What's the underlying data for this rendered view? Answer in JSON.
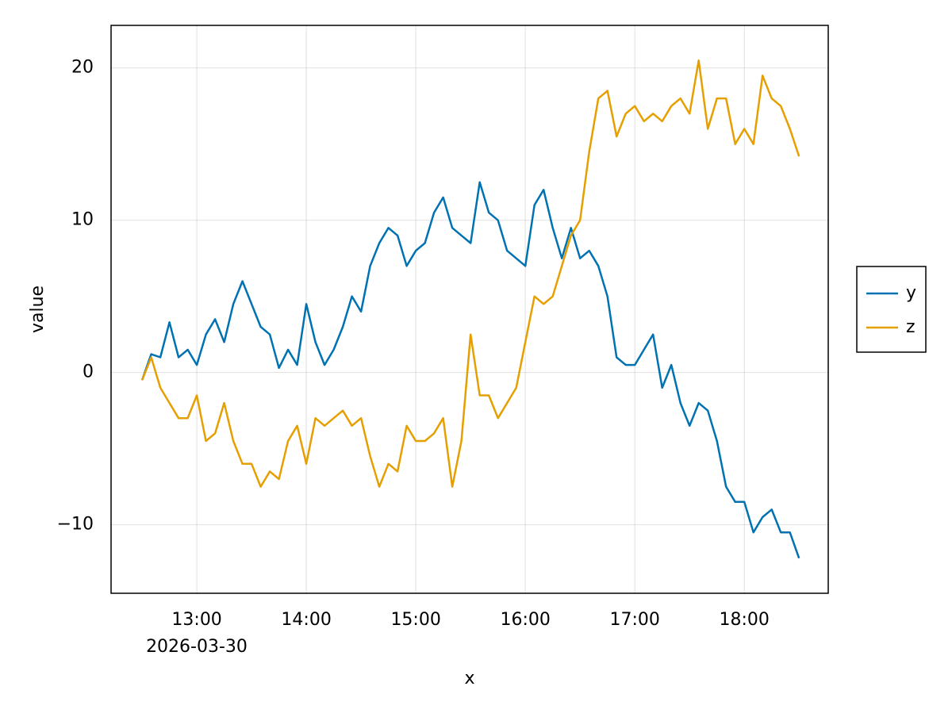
{
  "chart_data": {
    "type": "line",
    "x_label": "x",
    "y_label": "value",
    "date_label": "2026-03-30",
    "x": [
      "2026-03-30T12:30",
      "2026-03-30T12:35",
      "2026-03-30T12:40",
      "2026-03-30T12:45",
      "2026-03-30T12:50",
      "2026-03-30T12:55",
      "2026-03-30T13:00",
      "2026-03-30T13:05",
      "2026-03-30T13:10",
      "2026-03-30T13:15",
      "2026-03-30T13:20",
      "2026-03-30T13:25",
      "2026-03-30T13:30",
      "2026-03-30T13:35",
      "2026-03-30T13:40",
      "2026-03-30T13:45",
      "2026-03-30T13:50",
      "2026-03-30T13:55",
      "2026-03-30T14:00",
      "2026-03-30T14:05",
      "2026-03-30T14:10",
      "2026-03-30T14:15",
      "2026-03-30T14:20",
      "2026-03-30T14:25",
      "2026-03-30T14:30",
      "2026-03-30T14:35",
      "2026-03-30T14:40",
      "2026-03-30T14:45",
      "2026-03-30T14:50",
      "2026-03-30T14:55",
      "2026-03-30T15:00",
      "2026-03-30T15:05",
      "2026-03-30T15:10",
      "2026-03-30T15:15",
      "2026-03-30T15:20",
      "2026-03-30T15:25",
      "2026-03-30T15:30",
      "2026-03-30T15:35",
      "2026-03-30T15:40",
      "2026-03-30T15:45",
      "2026-03-30T15:50",
      "2026-03-30T15:55",
      "2026-03-30T16:00",
      "2026-03-30T16:05",
      "2026-03-30T16:10",
      "2026-03-30T16:15",
      "2026-03-30T16:20",
      "2026-03-30T16:25",
      "2026-03-30T16:30",
      "2026-03-30T16:35",
      "2026-03-30T16:40",
      "2026-03-30T16:45",
      "2026-03-30T16:50",
      "2026-03-30T16:55",
      "2026-03-30T17:00",
      "2026-03-30T17:05",
      "2026-03-30T17:10",
      "2026-03-30T17:15",
      "2026-03-30T17:20",
      "2026-03-30T17:25",
      "2026-03-30T17:30",
      "2026-03-30T17:35",
      "2026-03-30T17:40",
      "2026-03-30T17:45",
      "2026-03-30T17:50",
      "2026-03-30T17:55",
      "2026-03-30T18:00",
      "2026-03-30T18:05",
      "2026-03-30T18:10",
      "2026-03-30T18:15",
      "2026-03-30T18:20",
      "2026-03-30T18:25",
      "2026-03-30T18:30"
    ],
    "series": [
      {
        "name": "y",
        "color": "#0072b2",
        "values": [
          -0.5,
          1.2,
          1.0,
          3.3,
          1.0,
          1.5,
          0.5,
          2.5,
          3.5,
          2.0,
          4.5,
          6.0,
          4.5,
          3.0,
          2.5,
          0.3,
          1.5,
          0.5,
          4.5,
          2.0,
          0.5,
          1.5,
          3.0,
          5.0,
          4.0,
          7.0,
          8.5,
          9.5,
          9.0,
          7.0,
          8.0,
          8.5,
          10.5,
          11.5,
          9.5,
          9.0,
          8.5,
          12.5,
          10.5,
          10.0,
          8.0,
          7.5,
          7.0,
          11.0,
          12.0,
          9.5,
          7.5,
          9.5,
          7.5,
          8.0,
          7.0,
          5.0,
          1.0,
          0.5,
          0.5,
          1.5,
          2.5,
          -1.0,
          0.5,
          -2.0,
          -3.5,
          -2.0,
          -2.5,
          -4.5,
          -7.5,
          -8.5,
          -8.5,
          -10.5,
          -9.5,
          -9.0,
          -10.5,
          -10.5,
          -12.2
        ]
      },
      {
        "name": "z",
        "color": "#e69f00",
        "values": [
          -0.5,
          1.0,
          -1.0,
          -2.0,
          -3.0,
          -3.0,
          -1.5,
          -4.5,
          -4.0,
          -2.0,
          -4.5,
          -6.0,
          -6.0,
          -7.5,
          -6.5,
          -7.0,
          -4.5,
          -3.5,
          -6.0,
          -3.0,
          -3.5,
          -3.0,
          -2.5,
          -3.5,
          -3.0,
          -5.5,
          -7.5,
          -6.0,
          -6.5,
          -3.5,
          -4.5,
          -4.5,
          -4.0,
          -3.0,
          -7.5,
          -4.5,
          2.5,
          -1.5,
          -1.5,
          -3.0,
          -2.0,
          -1.0,
          2.0,
          5.0,
          4.5,
          5.0,
          7.0,
          9.0,
          10.0,
          14.5,
          18.0,
          18.5,
          15.5,
          17.0,
          17.5,
          16.5,
          17.0,
          16.5,
          17.5,
          18.0,
          17.0,
          20.5,
          16.0,
          18.0,
          18.0,
          15.0,
          16.0,
          15.0,
          19.5,
          18.0,
          17.5,
          16.0,
          14.2
        ]
      }
    ],
    "xlim": [
      "2026-03-30T12:13",
      "2026-03-30T18:46"
    ],
    "xticks": [
      {
        "value": "2026-03-30T13:00",
        "label": "13:00"
      },
      {
        "value": "2026-03-30T14:00",
        "label": "14:00"
      },
      {
        "value": "2026-03-30T15:00",
        "label": "15:00"
      },
      {
        "value": "2026-03-30T16:00",
        "label": "16:00"
      },
      {
        "value": "2026-03-30T17:00",
        "label": "17:00"
      },
      {
        "value": "2026-03-30T18:00",
        "label": "18:00"
      }
    ],
    "ylim": [
      -14.5,
      22.8
    ],
    "yticks": [
      {
        "value": -10,
        "label": "−10"
      },
      0,
      10,
      20
    ],
    "grid": true,
    "legend": "right"
  }
}
